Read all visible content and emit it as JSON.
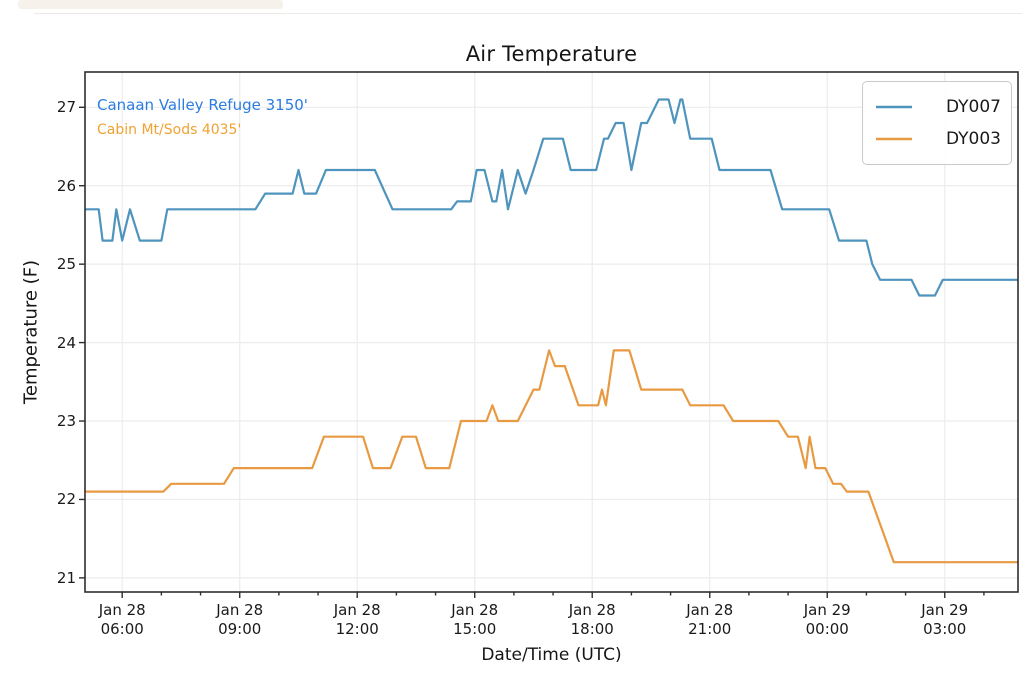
{
  "chart_data": {
    "type": "line",
    "title": "Air Temperature",
    "xlabel": "Date/Time (UTC)",
    "ylabel": "Temperature (F)",
    "grid": true,
    "legend_position": "upper right",
    "x_unit": "decimal hours since Jan 28 00:00 UTC (values > 24 are Jan 29)",
    "xlim_hours": [
      5.05,
      28.87
    ],
    "ylim": [
      20.82,
      27.45
    ],
    "y_ticks": [
      21,
      22,
      23,
      24,
      25,
      26,
      27
    ],
    "x_ticks": [
      {
        "h": 6,
        "date": "Jan 28",
        "time": "06:00"
      },
      {
        "h": 9,
        "date": "Jan 28",
        "time": "09:00"
      },
      {
        "h": 12,
        "date": "Jan 28",
        "time": "12:00"
      },
      {
        "h": 15,
        "date": "Jan 28",
        "time": "15:00"
      },
      {
        "h": 18,
        "date": "Jan 28",
        "time": "18:00"
      },
      {
        "h": 21,
        "date": "Jan 28",
        "time": "21:00"
      },
      {
        "h": 24,
        "date": "Jan 29",
        "time": "00:00"
      },
      {
        "h": 27,
        "date": "Jan 29",
        "time": "03:00"
      }
    ],
    "annotations": [
      {
        "text": "Canaan Valley Refuge 3150'",
        "color": "#2b7ce0",
        "series": "DY007"
      },
      {
        "text": "Cabin Mt/Sods 4035'",
        "color": "#f0a232",
        "series": "DY003"
      }
    ],
    "series": [
      {
        "name": "DY007",
        "station": "Canaan Valley Refuge 3150'",
        "color": "#4f94bd",
        "points": [
          [
            5.05,
            25.7
          ],
          [
            5.4,
            25.7
          ],
          [
            5.5,
            25.3
          ],
          [
            5.75,
            25.3
          ],
          [
            5.85,
            25.7
          ],
          [
            6.0,
            25.3
          ],
          [
            6.2,
            25.7
          ],
          [
            6.45,
            25.3
          ],
          [
            7.0,
            25.3
          ],
          [
            7.15,
            25.7
          ],
          [
            9.4,
            25.7
          ],
          [
            9.65,
            25.9
          ],
          [
            10.35,
            25.9
          ],
          [
            10.5,
            26.2
          ],
          [
            10.65,
            25.9
          ],
          [
            10.95,
            25.9
          ],
          [
            11.2,
            26.2
          ],
          [
            12.45,
            26.2
          ],
          [
            12.9,
            25.7
          ],
          [
            14.4,
            25.7
          ],
          [
            14.55,
            25.8
          ],
          [
            14.9,
            25.8
          ],
          [
            15.05,
            26.2
          ],
          [
            15.25,
            26.2
          ],
          [
            15.45,
            25.8
          ],
          [
            15.55,
            25.8
          ],
          [
            15.7,
            26.2
          ],
          [
            15.85,
            25.7
          ],
          [
            16.1,
            26.2
          ],
          [
            16.3,
            25.9
          ],
          [
            16.5,
            26.2
          ],
          [
            16.75,
            26.6
          ],
          [
            17.25,
            26.6
          ],
          [
            17.45,
            26.2
          ],
          [
            18.1,
            26.2
          ],
          [
            18.3,
            26.6
          ],
          [
            18.4,
            26.6
          ],
          [
            18.6,
            26.8
          ],
          [
            18.8,
            26.8
          ],
          [
            19.0,
            26.2
          ],
          [
            19.25,
            26.8
          ],
          [
            19.4,
            26.8
          ],
          [
            19.7,
            27.1
          ],
          [
            19.95,
            27.1
          ],
          [
            20.1,
            26.8
          ],
          [
            20.25,
            27.1
          ],
          [
            20.3,
            27.1
          ],
          [
            20.5,
            26.6
          ],
          [
            21.05,
            26.6
          ],
          [
            21.25,
            26.2
          ],
          [
            22.55,
            26.2
          ],
          [
            22.85,
            25.7
          ],
          [
            24.05,
            25.7
          ],
          [
            24.3,
            25.3
          ],
          [
            25.0,
            25.3
          ],
          [
            25.15,
            25.0
          ],
          [
            25.35,
            24.8
          ],
          [
            26.15,
            24.8
          ],
          [
            26.35,
            24.6
          ],
          [
            26.75,
            24.6
          ],
          [
            26.95,
            24.8
          ],
          [
            28.87,
            24.8
          ]
        ]
      },
      {
        "name": "DY003",
        "station": "Cabin Mt/Sods 4035'",
        "color": "#e89a42",
        "points": [
          [
            5.05,
            22.1
          ],
          [
            7.05,
            22.1
          ],
          [
            7.25,
            22.2
          ],
          [
            8.6,
            22.2
          ],
          [
            8.85,
            22.4
          ],
          [
            10.85,
            22.4
          ],
          [
            11.15,
            22.8
          ],
          [
            12.15,
            22.8
          ],
          [
            12.4,
            22.4
          ],
          [
            12.85,
            22.4
          ],
          [
            13.15,
            22.8
          ],
          [
            13.5,
            22.8
          ],
          [
            13.75,
            22.4
          ],
          [
            14.35,
            22.4
          ],
          [
            14.65,
            23.0
          ],
          [
            15.3,
            23.0
          ],
          [
            15.45,
            23.2
          ],
          [
            15.6,
            23.0
          ],
          [
            16.1,
            23.0
          ],
          [
            16.5,
            23.4
          ],
          [
            16.65,
            23.4
          ],
          [
            16.9,
            23.9
          ],
          [
            17.05,
            23.7
          ],
          [
            17.3,
            23.7
          ],
          [
            17.65,
            23.2
          ],
          [
            18.15,
            23.2
          ],
          [
            18.25,
            23.4
          ],
          [
            18.35,
            23.2
          ],
          [
            18.55,
            23.9
          ],
          [
            18.95,
            23.9
          ],
          [
            19.25,
            23.4
          ],
          [
            20.3,
            23.4
          ],
          [
            20.5,
            23.2
          ],
          [
            21.35,
            23.2
          ],
          [
            21.6,
            23.0
          ],
          [
            22.75,
            23.0
          ],
          [
            23.0,
            22.8
          ],
          [
            23.25,
            22.8
          ],
          [
            23.45,
            22.4
          ],
          [
            23.55,
            22.8
          ],
          [
            23.7,
            22.4
          ],
          [
            23.95,
            22.4
          ],
          [
            24.15,
            22.2
          ],
          [
            24.35,
            22.2
          ],
          [
            24.5,
            22.1
          ],
          [
            25.05,
            22.1
          ],
          [
            25.7,
            21.2
          ],
          [
            28.87,
            21.2
          ]
        ]
      }
    ],
    "style": {
      "grid_color": "#ececec",
      "spine_color": "#2e2e2e",
      "tick_color": "#2e2e2e",
      "text_color": "#1a1a1a",
      "background": "#ffffff"
    }
  }
}
